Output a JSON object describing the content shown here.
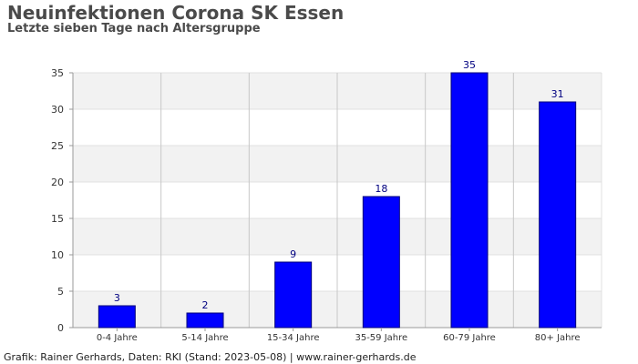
{
  "header": {
    "title": "Neuinfektionen Corona SK Essen",
    "subtitle": "Letzte sieben Tage nach Altersgruppe"
  },
  "footer": {
    "credit": "Grafik: Rainer Gerhards, Daten: RKI (Stand: 2023-05-08) | www.rainer-gerhards.de"
  },
  "colors": {
    "bar": "#0000ff",
    "bar_stroke": "#00007a",
    "band": "#f2f2f2",
    "grid": "#c8c8c8",
    "axis": "#999999",
    "data_label": "#000080"
  },
  "chart_data": {
    "type": "bar",
    "title": "Neuinfektionen Corona SK Essen",
    "subtitle": "Letzte sieben Tage nach Altersgruppe",
    "xlabel": "",
    "ylabel": "",
    "categories": [
      "0-4 Jahre",
      "5-14 Jahre",
      "15-34 Jahre",
      "35-59 Jahre",
      "60-79 Jahre",
      "80+ Jahre"
    ],
    "values": [
      3,
      2,
      9,
      18,
      35,
      31
    ],
    "ylim": [
      0,
      35
    ],
    "yticks": [
      0,
      5,
      10,
      15,
      20,
      25,
      30,
      35
    ],
    "data_labels": true,
    "grid": true,
    "legend": "none"
  }
}
